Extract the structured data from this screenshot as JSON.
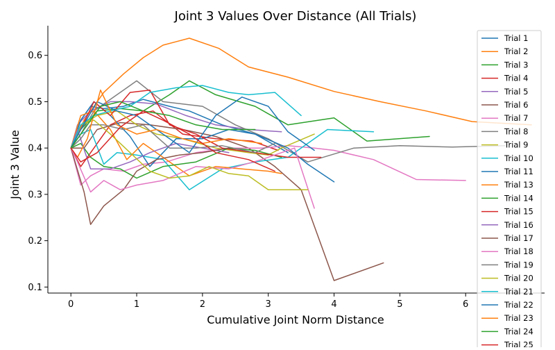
{
  "chart_data": {
    "type": "line",
    "title": "Joint 3 Values Over Distance (All Trials)",
    "xlabel": "Cumulative Joint Norm Distance",
    "ylabel": "Joint 3 Value",
    "xlim": [
      -0.35,
      7.2
    ],
    "ylim": [
      0.087,
      0.664
    ],
    "x_ticks": [
      0,
      1,
      2,
      3,
      4,
      5,
      6
    ],
    "y_ticks": [
      0.1,
      0.2,
      0.3,
      0.4,
      0.5,
      0.6
    ],
    "grid": false,
    "legend_position": "right",
    "series": [
      {
        "name": "Trial 1",
        "color": "#1f77b4",
        "x": [
          0,
          0.15,
          0.3,
          0.5,
          0.8,
          1.1,
          1.5,
          1.8,
          2.3,
          2.8,
          3.3
        ],
        "y": [
          0.4,
          0.46,
          0.49,
          0.485,
          0.49,
          0.505,
          0.49,
          0.48,
          0.45,
          0.43,
          0.39
        ]
      },
      {
        "name": "Trial 2",
        "color": "#ff7f0e",
        "x": [
          0,
          0.2,
          0.5,
          0.8,
          1.1,
          1.4,
          1.8,
          2.25,
          2.7,
          3.3,
          4.0,
          4.7,
          5.4,
          6.1,
          7.0
        ],
        "y": [
          0.4,
          0.46,
          0.52,
          0.56,
          0.595,
          0.622,
          0.637,
          0.615,
          0.575,
          0.553,
          0.522,
          0.5,
          0.48,
          0.457,
          0.45
        ]
      },
      {
        "name": "Trial 3",
        "color": "#2ca02c",
        "x": [
          0,
          0.15,
          0.4,
          0.75,
          1.1,
          1.5,
          1.8,
          2.2,
          2.8,
          3.3,
          4.0,
          4.5,
          5.45
        ],
        "y": [
          0.4,
          0.44,
          0.48,
          0.485,
          0.48,
          0.515,
          0.545,
          0.515,
          0.49,
          0.45,
          0.465,
          0.415,
          0.425
        ]
      },
      {
        "name": "Trial 4",
        "color": "#d62728",
        "x": [
          0,
          0.15,
          0.35,
          0.6,
          0.9,
          1.25,
          1.7,
          2.2,
          2.75,
          3.15
        ],
        "y": [
          0.4,
          0.36,
          0.4,
          0.45,
          0.47,
          0.48,
          0.43,
          0.42,
          0.415,
          0.395
        ]
      },
      {
        "name": "Trial 5",
        "color": "#9467bd",
        "x": [
          0,
          0.1,
          0.3,
          0.6,
          0.9,
          1.3,
          1.75,
          2.2,
          2.7,
          3.2
        ],
        "y": [
          0.4,
          0.45,
          0.48,
          0.5,
          0.5,
          0.495,
          0.47,
          0.45,
          0.44,
          0.435
        ]
      },
      {
        "name": "Trial 6",
        "color": "#8c564b",
        "x": [
          0,
          0.2,
          0.4,
          0.75,
          1.2,
          1.7,
          2.2,
          2.7,
          3.1,
          3.5,
          4.0,
          4.75
        ],
        "y": [
          0.4,
          0.4,
          0.44,
          0.455,
          0.45,
          0.44,
          0.425,
          0.4,
          0.36,
          0.31,
          0.114,
          0.152
        ]
      },
      {
        "name": "Trial 7",
        "color": "#e377c2",
        "x": [
          0,
          0.15,
          0.3,
          0.5,
          0.8,
          1.1,
          1.45,
          1.9,
          2.4,
          2.9,
          3.3,
          3.7,
          4.0,
          4.6,
          5.25,
          6.0
        ],
        "y": [
          0.4,
          0.32,
          0.34,
          0.355,
          0.35,
          0.365,
          0.37,
          0.39,
          0.4,
          0.4,
          0.405,
          0.4,
          0.395,
          0.375,
          0.332,
          0.33
        ]
      },
      {
        "name": "Trial 8",
        "color": "#7f7f7f",
        "x": [
          0,
          0.15,
          0.35,
          0.65,
          1.0,
          1.4,
          2.0,
          2.5,
          3.0,
          3.6,
          4.3,
          5.0,
          5.8,
          6.6
        ],
        "y": [
          0.4,
          0.43,
          0.48,
          0.51,
          0.545,
          0.5,
          0.49,
          0.45,
          0.42,
          0.37,
          0.4,
          0.405,
          0.402,
          0.405
        ]
      },
      {
        "name": "Trial 9",
        "color": "#bcbd22",
        "x": [
          0,
          0.15,
          0.4,
          0.7,
          1.0,
          1.3,
          1.7,
          2.2,
          2.7,
          3.0,
          3.2,
          3.7
        ],
        "y": [
          0.4,
          0.45,
          0.47,
          0.48,
          0.45,
          0.43,
          0.42,
          0.4,
          0.39,
          0.385,
          0.4,
          0.43
        ]
      },
      {
        "name": "Trial 10",
        "color": "#17becf",
        "x": [
          0,
          0.15,
          0.3,
          0.5,
          0.7,
          1.0,
          1.4,
          1.8,
          2.3,
          2.8,
          3.3,
          3.9,
          4.6
        ],
        "y": [
          0.4,
          0.43,
          0.44,
          0.365,
          0.39,
          0.385,
          0.375,
          0.31,
          0.355,
          0.37,
          0.38,
          0.44,
          0.435
        ]
      },
      {
        "name": "Trial 11",
        "color": "#1f77b4",
        "x": [
          0,
          0.15,
          0.35,
          0.6,
          0.9,
          1.2,
          1.6,
          2.0,
          2.4,
          2.8,
          3.3,
          3.6,
          4.0
        ],
        "y": [
          0.4,
          0.46,
          0.5,
          0.47,
          0.425,
          0.36,
          0.42,
          0.42,
          0.44,
          0.43,
          0.4,
          0.365,
          0.327
        ]
      },
      {
        "name": "Trial 13",
        "color": "#ff7f0e",
        "x": [
          0,
          0.15,
          0.35,
          0.6,
          0.85,
          1.1,
          1.4,
          1.8,
          2.2,
          2.6,
          3.0,
          3.2
        ],
        "y": [
          0.4,
          0.47,
          0.48,
          0.44,
          0.375,
          0.41,
          0.38,
          0.34,
          0.36,
          0.355,
          0.35,
          0.345
        ]
      },
      {
        "name": "Trial 14",
        "color": "#2ca02c",
        "x": [
          0,
          0.15,
          0.3,
          0.5,
          0.75,
          1.0,
          1.4,
          1.9,
          2.4,
          2.8,
          3.2
        ],
        "y": [
          0.4,
          0.41,
          0.38,
          0.36,
          0.355,
          0.335,
          0.36,
          0.37,
          0.4,
          0.395,
          0.38
        ]
      },
      {
        "name": "Trial 15",
        "color": "#d62728",
        "x": [
          0,
          0.15,
          0.35,
          0.6,
          0.9,
          1.2,
          1.5,
          1.9,
          2.3,
          2.8,
          3.3,
          3.6,
          3.8
        ],
        "y": [
          0.4,
          0.44,
          0.5,
          0.47,
          0.52,
          0.525,
          0.45,
          0.43,
          0.4,
          0.39,
          0.38,
          0.38,
          0.38
        ]
      },
      {
        "name": "Trial 16",
        "color": "#9467bd",
        "x": [
          0,
          0.1,
          0.3,
          0.6,
          0.9,
          1.2,
          1.6,
          2.0,
          2.4
        ],
        "y": [
          0.4,
          0.44,
          0.355,
          0.355,
          0.37,
          0.39,
          0.41,
          0.4,
          0.39
        ]
      },
      {
        "name": "Trial 17",
        "color": "#8c564b",
        "x": [
          0,
          0.2,
          0.3,
          0.5,
          0.8,
          1.0,
          1.3,
          1.65,
          2.0,
          2.4
        ],
        "y": [
          0.4,
          0.305,
          0.235,
          0.275,
          0.31,
          0.35,
          0.375,
          0.385,
          0.39,
          0.4
        ]
      },
      {
        "name": "Trial 18",
        "color": "#e377c2",
        "x": [
          0,
          0.1,
          0.3,
          0.5,
          0.75,
          1.0,
          1.4,
          1.9,
          2.4,
          2.9,
          3.4,
          3.7
        ],
        "y": [
          0.4,
          0.37,
          0.305,
          0.33,
          0.31,
          0.32,
          0.33,
          0.36,
          0.355,
          0.375,
          0.4,
          0.27
        ]
      },
      {
        "name": "Trial 19",
        "color": "#7f7f7f",
        "x": [
          0,
          0.15,
          0.3,
          0.5,
          0.8,
          1.1,
          1.5,
          1.9,
          2.3,
          2.8,
          3.1
        ],
        "y": [
          0.4,
          0.42,
          0.45,
          0.45,
          0.44,
          0.45,
          0.4,
          0.4,
          0.405,
          0.39,
          0.41
        ]
      },
      {
        "name": "Trial 20",
        "color": "#bcbd22",
        "x": [
          0,
          0.15,
          0.35,
          0.6,
          0.9,
          1.2,
          1.5,
          1.8,
          2.1,
          2.4,
          2.7,
          3.0,
          3.4,
          3.6
        ],
        "y": [
          0.4,
          0.45,
          0.46,
          0.43,
          0.39,
          0.35,
          0.335,
          0.34,
          0.36,
          0.345,
          0.34,
          0.31,
          0.31,
          0.31
        ]
      },
      {
        "name": "Trial 21",
        "color": "#17becf",
        "x": [
          0,
          0.15,
          0.35,
          0.6,
          0.9,
          1.2,
          1.6,
          2.0,
          2.4,
          2.7,
          3.1,
          3.5
        ],
        "y": [
          0.4,
          0.45,
          0.47,
          0.48,
          0.49,
          0.52,
          0.53,
          0.535,
          0.52,
          0.515,
          0.52,
          0.47
        ]
      },
      {
        "name": "Trial 22",
        "color": "#1f77b4",
        "x": [
          0,
          0.15,
          0.4,
          0.7,
          1.0,
          1.4,
          1.8,
          2.2,
          2.6,
          3.0,
          3.3,
          3.7
        ],
        "y": [
          0.4,
          0.44,
          0.5,
          0.48,
          0.47,
          0.43,
          0.39,
          0.47,
          0.51,
          0.49,
          0.435,
          0.395
        ]
      },
      {
        "name": "Trial 23",
        "color": "#ff7f0e",
        "x": [
          0,
          0.1,
          0.25,
          0.45,
          0.7,
          1.0,
          1.3,
          1.7,
          2.0,
          2.4,
          2.9
        ],
        "y": [
          0.4,
          0.38,
          0.42,
          0.525,
          0.45,
          0.43,
          0.44,
          0.42,
          0.41,
          0.42,
          0.41
        ]
      },
      {
        "name": "Trial 24",
        "color": "#2ca02c",
        "x": [
          0,
          0.2,
          0.45,
          0.75,
          1.1,
          1.5,
          1.9,
          2.3,
          2.8
        ],
        "y": [
          0.4,
          0.44,
          0.49,
          0.5,
          0.48,
          0.47,
          0.45,
          0.44,
          0.44
        ]
      },
      {
        "name": "Trial 25",
        "color": "#d62728",
        "x": [
          0,
          0.15,
          0.4,
          0.75,
          1.1,
          1.4,
          1.8,
          2.2,
          2.7,
          3.1
        ],
        "y": [
          0.4,
          0.37,
          0.39,
          0.445,
          0.48,
          0.46,
          0.43,
          0.39,
          0.375,
          0.35
        ]
      }
    ]
  }
}
